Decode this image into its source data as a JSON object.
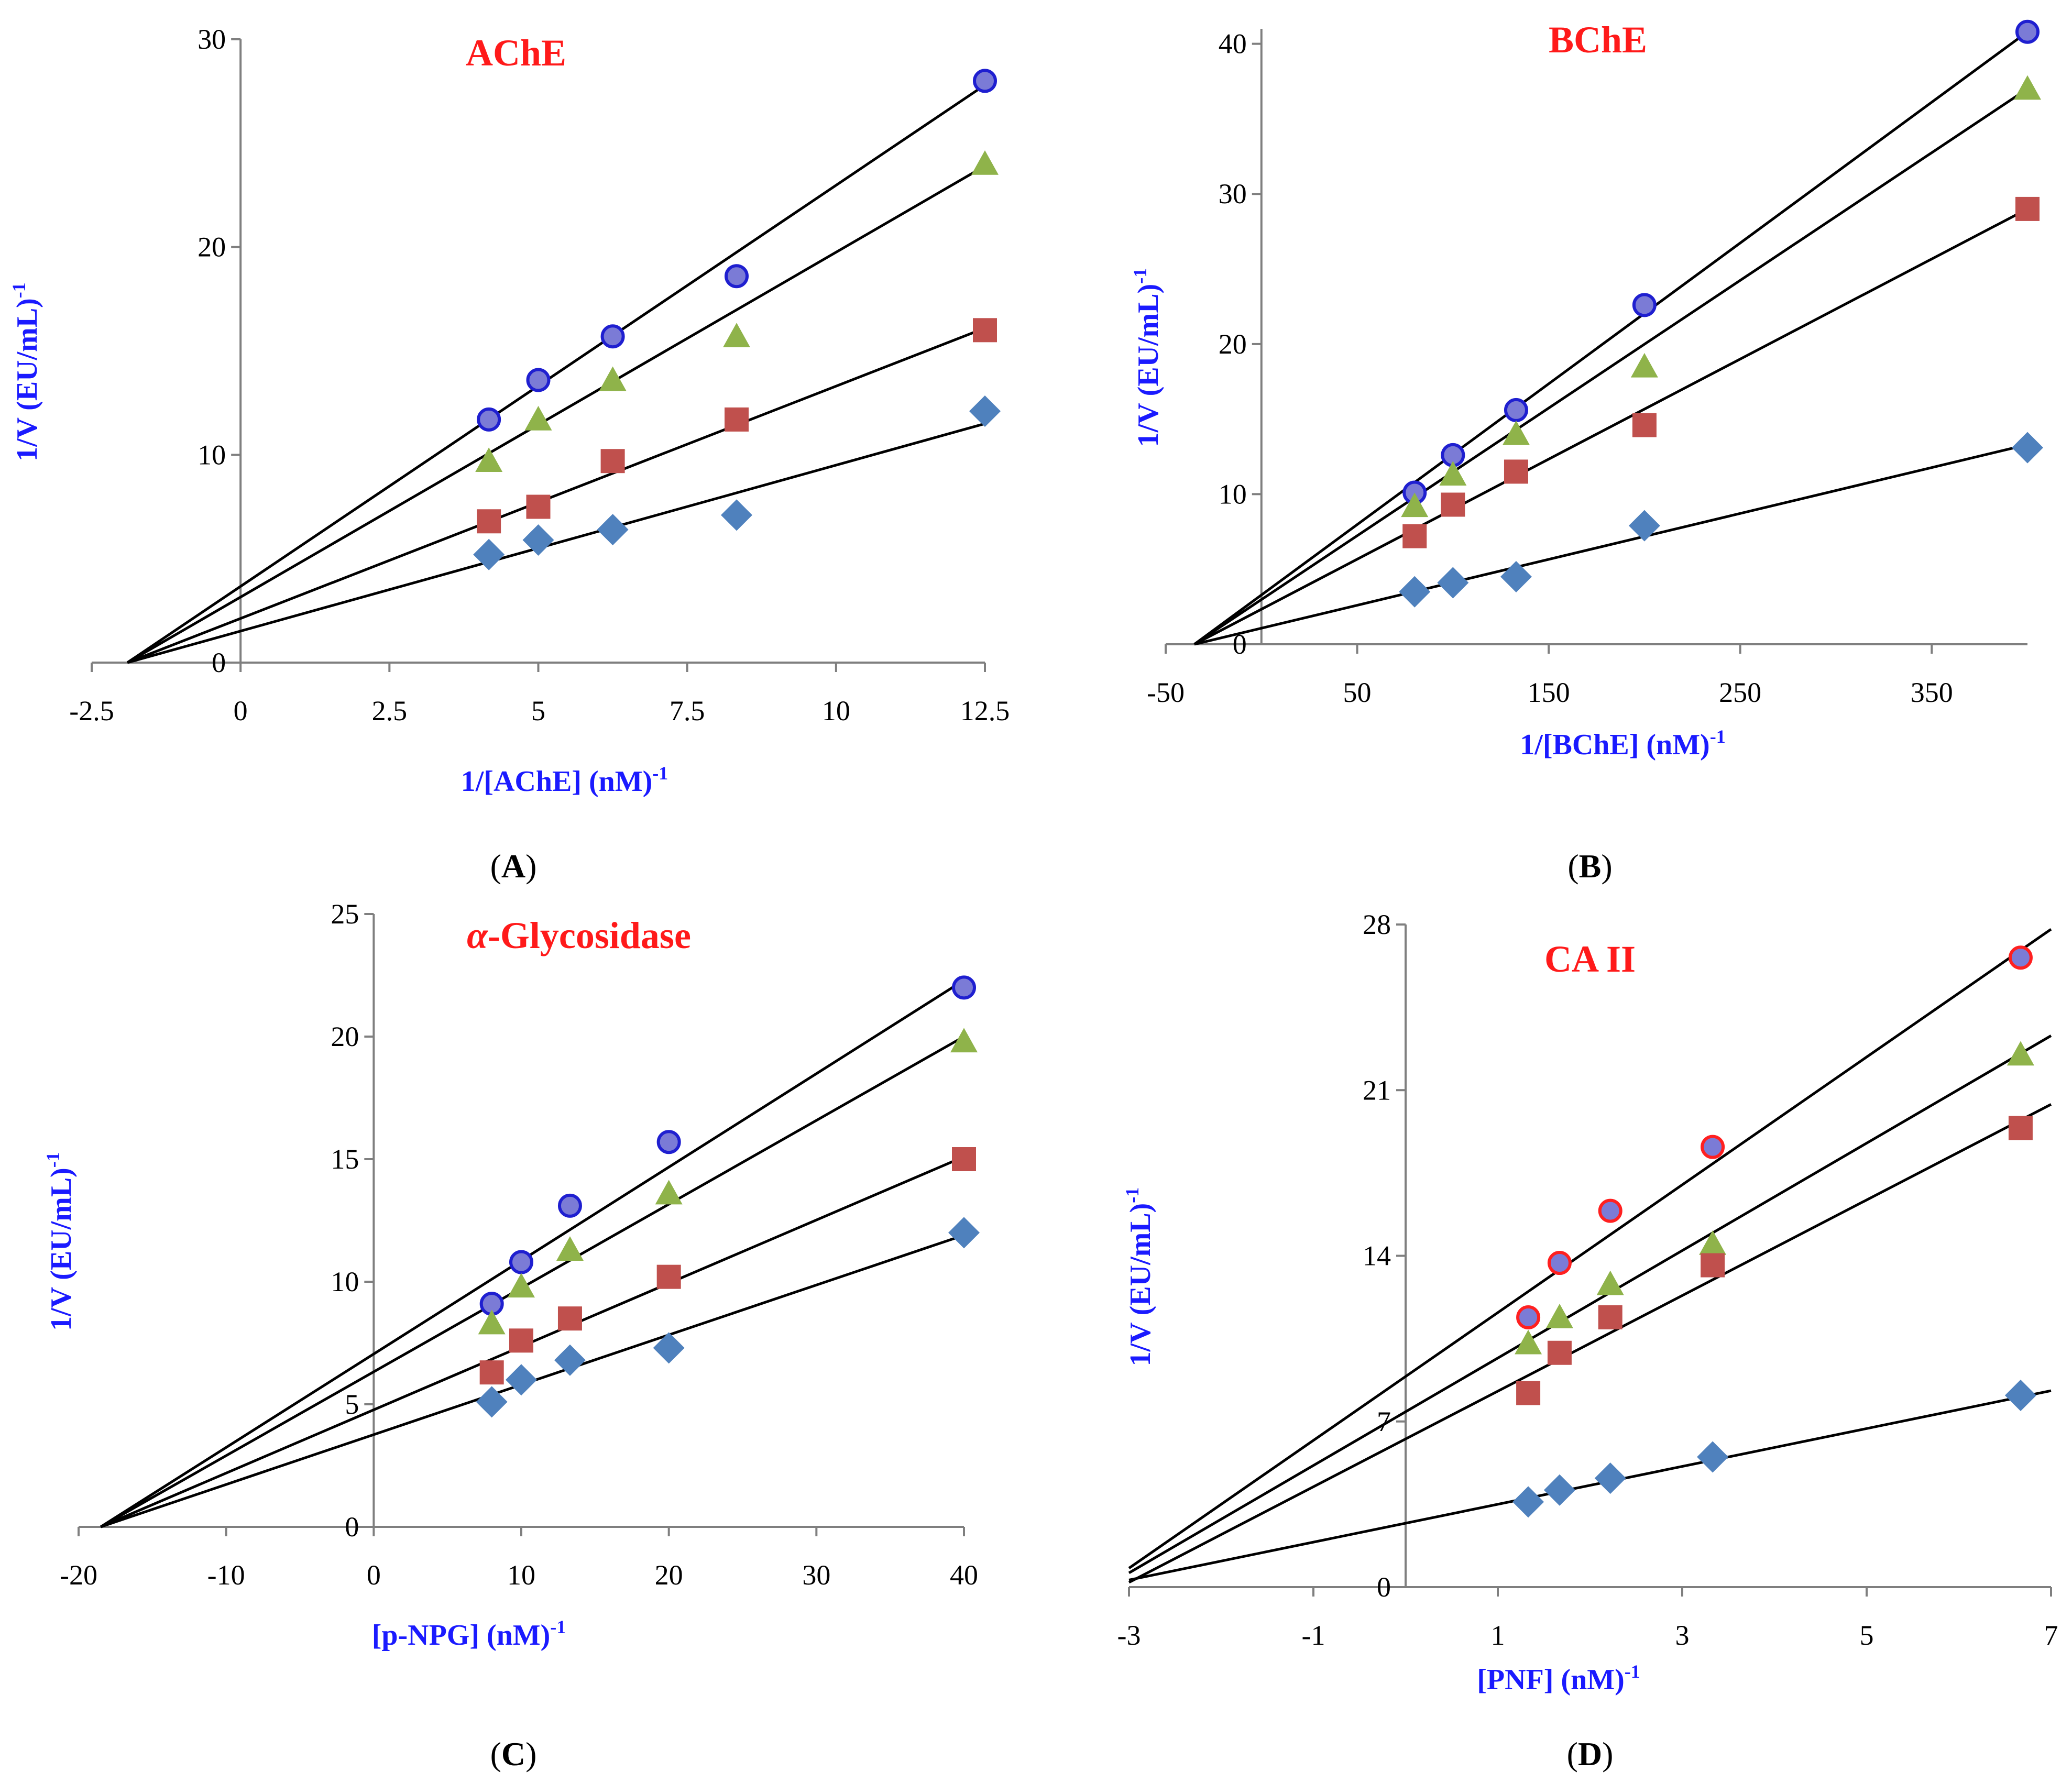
{
  "chart_data": [
    {
      "type": "scatter",
      "panel_label": "A",
      "title": "AChE",
      "xlabel": "1/[AChE] (nM)",
      "xlabel_sup": "-1",
      "ylabel": "1/V (EU/mL)",
      "ylabel_sup": "-1",
      "xlim": [
        -2.5,
        12.5
      ],
      "ylim": [
        0,
        30
      ],
      "xticks": [
        "-2.5",
        "0",
        "2.5",
        "5",
        "7.5",
        "10",
        "12.5"
      ],
      "yticks": [
        "0",
        "10",
        "20",
        "30"
      ],
      "series": [
        {
          "marker": "circle",
          "x": [
            4.17,
            5,
            6.25,
            8.33,
            12.5
          ],
          "y": [
            11.7,
            13.6,
            15.7,
            18.6,
            28.0
          ],
          "fit": {
            "x": [
              -1.9,
              12.5
            ],
            "y": [
              0,
              27.8
            ]
          }
        },
        {
          "marker": "triangle",
          "x": [
            4.17,
            5,
            6.25,
            8.33,
            12.5
          ],
          "y": [
            9.7,
            11.7,
            13.6,
            15.7,
            24.0
          ],
          "fit": {
            "x": [
              -1.9,
              12.5
            ],
            "y": [
              0,
              23.9
            ]
          }
        },
        {
          "marker": "square",
          "x": [
            4.17,
            5,
            6.25,
            8.33,
            12.5
          ],
          "y": [
            6.8,
            7.5,
            9.7,
            11.7,
            16.0
          ],
          "fit": {
            "x": [
              -1.9,
              12.5
            ],
            "y": [
              0,
              16.1
            ]
          }
        },
        {
          "marker": "diamond",
          "x": [
            4.17,
            5,
            6.25,
            8.33,
            12.5
          ],
          "y": [
            5.2,
            5.9,
            6.4,
            7.1,
            12.1
          ],
          "fit": {
            "x": [
              -1.9,
              12.5
            ],
            "y": [
              0,
              11.5
            ]
          }
        }
      ]
    },
    {
      "type": "scatter",
      "panel_label": "B",
      "title": "BChE",
      "xlabel": "1/[BChE] (nM)",
      "xlabel_sup": "-1",
      "ylabel": "1/V (EU/mL)",
      "ylabel_sup": "-1",
      "xlim": [
        -50,
        400
      ],
      "ylim": [
        0,
        41
      ],
      "xticks": [
        "-50",
        "50",
        "150",
        "250",
        "350"
      ],
      "xtick_values": [
        -50,
        50,
        150,
        250,
        350
      ],
      "yticks": [
        "0",
        "10",
        "20",
        "30",
        "40"
      ],
      "series": [
        {
          "marker": "circle",
          "x": [
            80,
            100,
            133,
            200,
            400
          ],
          "y": [
            10.1,
            12.6,
            15.6,
            22.6,
            40.8
          ],
          "fit": {
            "x": [
              -35,
              400
            ],
            "y": [
              0,
              40.8
            ]
          }
        },
        {
          "marker": "triangle",
          "x": [
            80,
            100,
            133,
            200,
            400
          ],
          "y": [
            9.2,
            11.3,
            14.0,
            18.5,
            37.0
          ],
          "fit": {
            "x": [
              -35,
              400
            ],
            "y": [
              0,
              37.0
            ]
          }
        },
        {
          "marker": "square",
          "x": [
            80,
            100,
            133,
            200,
            400
          ],
          "y": [
            7.2,
            9.3,
            11.5,
            14.6,
            29.0
          ],
          "fit": {
            "x": [
              -35,
              400
            ],
            "y": [
              0,
              29.0
            ]
          }
        },
        {
          "marker": "diamond",
          "x": [
            80,
            100,
            133,
            200,
            400
          ],
          "y": [
            3.5,
            4.1,
            4.5,
            7.9,
            13.1
          ],
          "fit": {
            "x": [
              -35,
              400
            ],
            "y": [
              0,
              13.3
            ]
          }
        }
      ]
    },
    {
      "type": "scatter",
      "panel_label": "C",
      "title_prefix": "α",
      "title": "-Glycosidase",
      "xlabel": "[p-NPG] (nM)",
      "xlabel_sup": "-1",
      "ylabel": "1/V (EU/mL)",
      "ylabel_sup": "-1",
      "xlim": [
        -20,
        40
      ],
      "ylim": [
        0,
        25
      ],
      "xticks": [
        "-20",
        "-10",
        "0",
        "10",
        "20",
        "30",
        "40"
      ],
      "yticks": [
        "0",
        "5",
        "10",
        "15",
        "20",
        "25"
      ],
      "series": [
        {
          "marker": "circle",
          "x": [
            8,
            10,
            13.3,
            20,
            40
          ],
          "y": [
            9.1,
            10.8,
            13.1,
            15.7,
            22.0
          ],
          "fit": {
            "x": [
              -18.5,
              40
            ],
            "y": [
              0,
              22.3
            ]
          }
        },
        {
          "marker": "triangle",
          "x": [
            8,
            10,
            13.3,
            20,
            40
          ],
          "y": [
            8.3,
            9.8,
            11.3,
            13.6,
            19.8
          ],
          "fit": {
            "x": [
              -18.5,
              40
            ],
            "y": [
              0,
              20.0
            ]
          }
        },
        {
          "marker": "square",
          "x": [
            8,
            10,
            13.3,
            20,
            40
          ],
          "y": [
            6.3,
            7.6,
            8.5,
            10.2,
            15.0
          ],
          "fit": {
            "x": [
              -18.5,
              40
            ],
            "y": [
              0,
              15.1
            ]
          }
        },
        {
          "marker": "diamond",
          "x": [
            8,
            10,
            13.3,
            20,
            40
          ],
          "y": [
            5.1,
            6.0,
            6.8,
            7.3,
            12.0
          ],
          "fit": {
            "x": [
              -18.5,
              40
            ],
            "y": [
              0,
              11.9
            ]
          }
        }
      ]
    },
    {
      "type": "scatter",
      "panel_label": "D",
      "title": "CA II",
      "xlabel": "[PNF] (nM)",
      "xlabel_sup": "-1",
      "ylabel": "1/V (EU/mL)",
      "ylabel_sup": "-1",
      "xlim": [
        -3,
        7
      ],
      "ylim": [
        0,
        28
      ],
      "xticks": [
        "-3",
        "-1",
        "1",
        "3",
        "5",
        "7"
      ],
      "yticks": [
        "0",
        "7",
        "14",
        "21",
        "28"
      ],
      "series": [
        {
          "marker": "circle-red",
          "x": [
            1.33,
            1.67,
            2.22,
            3.33,
            6.67
          ],
          "y": [
            11.4,
            13.7,
            15.9,
            18.6,
            26.6
          ],
          "fit": {
            "x": [
              -3,
              7
            ],
            "y": [
              0.8,
              27.8
            ]
          }
        },
        {
          "marker": "triangle",
          "x": [
            1.33,
            1.67,
            2.22,
            3.33,
            6.67
          ],
          "y": [
            10.3,
            11.4,
            12.8,
            14.5,
            22.5
          ],
          "fit": {
            "x": [
              -3,
              7
            ],
            "y": [
              0.6,
              23.3
            ]
          }
        },
        {
          "marker": "square",
          "x": [
            1.33,
            1.67,
            2.22,
            3.33,
            6.67
          ],
          "y": [
            8.2,
            9.9,
            11.4,
            13.6,
            19.4
          ],
          "fit": {
            "x": [
              -3,
              7
            ],
            "y": [
              0.2,
              20.4
            ]
          }
        },
        {
          "marker": "diamond",
          "x": [
            1.33,
            1.67,
            2.22,
            3.33,
            6.67
          ],
          "y": [
            3.6,
            4.1,
            4.6,
            5.5,
            8.1
          ],
          "fit": {
            "x": [
              -3,
              7
            ],
            "y": [
              0.3,
              8.3
            ]
          }
        }
      ]
    }
  ],
  "colors": {
    "circle_fill": "#7b7bd6",
    "circle_stroke": "#1f1fd0",
    "circle_red_stroke": "#ff2020",
    "triangle": "#8fb34a",
    "square": "#c0504d",
    "diamond": "#4f81bd",
    "axis": "#7f7f7f",
    "title": "#ff1a1a",
    "label": "#1a1aff"
  }
}
